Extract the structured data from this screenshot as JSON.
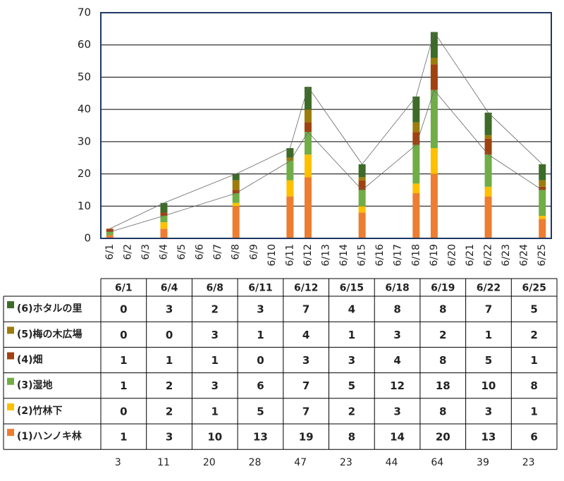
{
  "chart_data": {
    "type": "stacked_bar",
    "categories": [
      "6/1",
      "6/2",
      "6/3",
      "6/4",
      "6/5",
      "6/6",
      "6/7",
      "6/8",
      "6/9",
      "6/10",
      "6/11",
      "6/12",
      "6/13",
      "6/14",
      "6/15",
      "6/16",
      "6/17",
      "6/18",
      "6/19",
      "6/20",
      "6/21",
      "6/22",
      "6/23",
      "6/24",
      "6/25"
    ],
    "series": [
      {
        "name": "(1)ハンノキ林",
        "color": "#ed7d31",
        "values": [
          1,
          null,
          null,
          3,
          null,
          null,
          null,
          10,
          null,
          null,
          13,
          19,
          null,
          null,
          8,
          null,
          null,
          14,
          20,
          null,
          null,
          13,
          null,
          null,
          6
        ]
      },
      {
        "name": "(2)竹林下",
        "color": "#ffc000",
        "values": [
          0,
          null,
          null,
          2,
          null,
          null,
          null,
          1,
          null,
          null,
          5,
          7,
          null,
          null,
          2,
          null,
          null,
          3,
          8,
          null,
          null,
          3,
          null,
          null,
          1
        ]
      },
      {
        "name": "(3)湿地",
        "color": "#70ad47",
        "values": [
          1,
          null,
          null,
          2,
          null,
          null,
          null,
          3,
          null,
          null,
          6,
          7,
          null,
          null,
          5,
          null,
          null,
          12,
          18,
          null,
          null,
          10,
          null,
          null,
          8
        ]
      },
      {
        "name": "(4)畑",
        "color": "#a0420f",
        "values": [
          1,
          null,
          null,
          1,
          null,
          null,
          null,
          1,
          null,
          null,
          0,
          3,
          null,
          null,
          3,
          null,
          null,
          4,
          8,
          null,
          null,
          5,
          null,
          null,
          1
        ]
      },
      {
        "name": "(5)梅の木広場",
        "color": "#9c7c0c",
        "values": [
          0,
          null,
          null,
          0,
          null,
          null,
          null,
          3,
          null,
          null,
          1,
          4,
          null,
          null,
          1,
          null,
          null,
          3,
          2,
          null,
          null,
          1,
          null,
          null,
          2
        ]
      },
      {
        "name": "(6)ホタルの里",
        "color": "#3d6b28",
        "values": [
          0,
          null,
          null,
          3,
          null,
          null,
          null,
          2,
          null,
          null,
          3,
          7,
          null,
          null,
          4,
          null,
          null,
          8,
          8,
          null,
          null,
          7,
          null,
          null,
          5
        ]
      }
    ],
    "totals": [
      3,
      null,
      null,
      11,
      null,
      null,
      null,
      20,
      null,
      null,
      28,
      47,
      null,
      null,
      23,
      null,
      null,
      44,
      64,
      null,
      null,
      39,
      null,
      null,
      23
    ],
    "ylim": [
      0,
      70
    ],
    "yticks": [
      0,
      10,
      20,
      30,
      40,
      50,
      60,
      70
    ],
    "grid": true
  }
}
